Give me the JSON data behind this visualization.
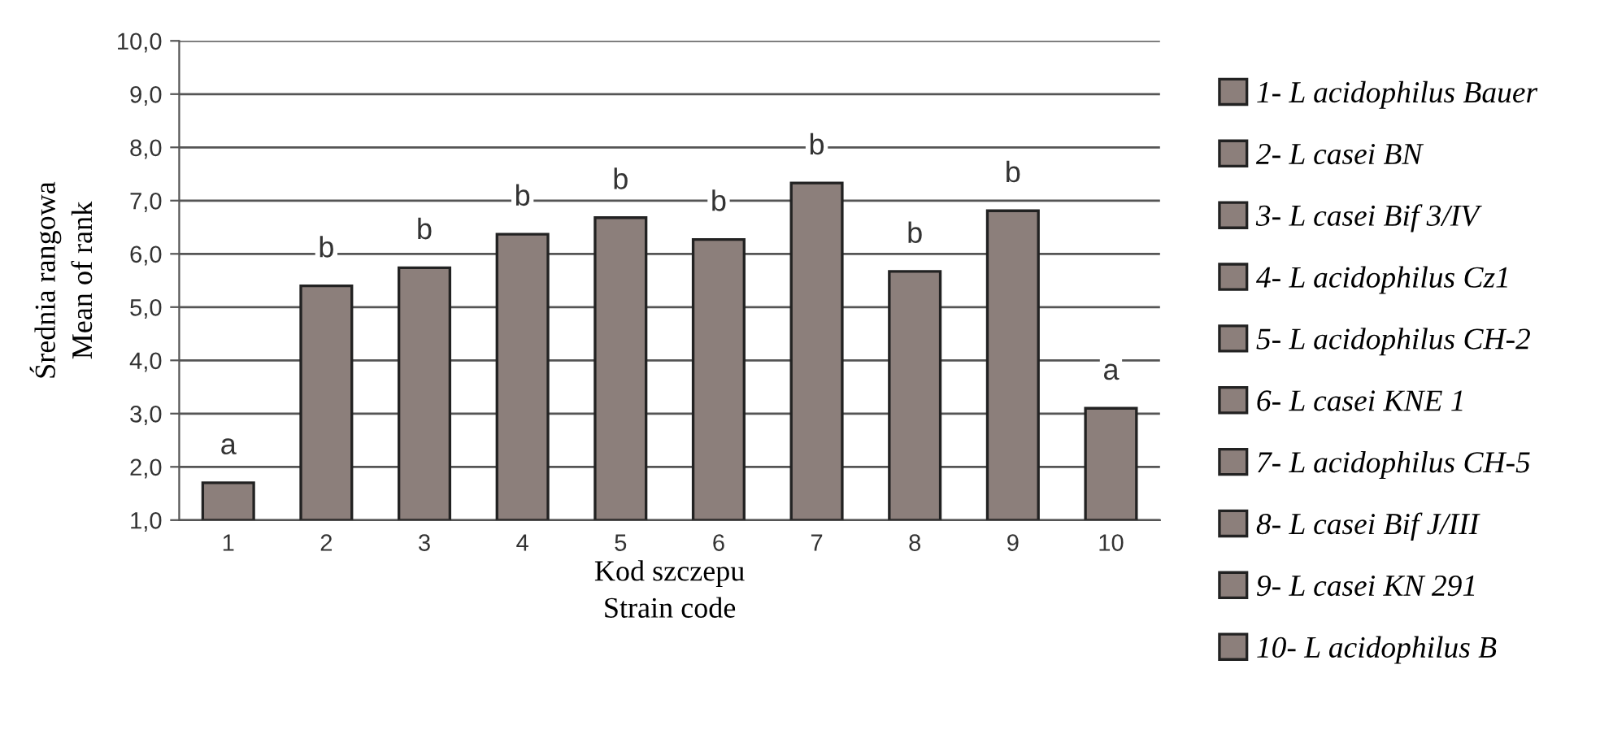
{
  "chart_data": {
    "type": "bar",
    "xlabel": "Kod szczepu\nStrain code",
    "ylabel": "Średnia rangowa\nMean of rank",
    "categories": [
      "1",
      "2",
      "3",
      "4",
      "5",
      "6",
      "7",
      "8",
      "9",
      "10"
    ],
    "series": [
      {
        "name": "1- L acidophilus Bauer",
        "color": "#8c7f7b",
        "values": [
          1.7,
          null,
          null,
          null,
          null,
          null,
          null,
          null,
          null,
          null
        ]
      },
      {
        "name": "2- L casei BN",
        "color": "#8c7f7b",
        "values": [
          null,
          5.4,
          null,
          null,
          null,
          null,
          null,
          null,
          null,
          null
        ]
      },
      {
        "name": "3- L casei Bif 3/IV",
        "color": "#8c7f7b",
        "values": [
          null,
          null,
          5.74,
          null,
          null,
          null,
          null,
          null,
          null,
          null
        ]
      },
      {
        "name": "4- L acidophilus Cz1",
        "color": "#8c7f7b",
        "values": [
          null,
          null,
          null,
          6.37,
          null,
          null,
          null,
          null,
          null,
          null
        ]
      },
      {
        "name": "5- L acidophilus CH-2",
        "color": "#8c7f7b",
        "values": [
          null,
          null,
          null,
          null,
          6.68,
          null,
          null,
          null,
          null,
          null
        ]
      },
      {
        "name": "6- L casei KNE 1",
        "color": "#8c7f7b",
        "values": [
          null,
          null,
          null,
          null,
          null,
          6.27,
          null,
          null,
          null,
          null
        ]
      },
      {
        "name": "7- L acidophilus CH-5",
        "color": "#8c7f7b",
        "values": [
          null,
          null,
          null,
          null,
          null,
          null,
          7.33,
          null,
          null,
          null
        ]
      },
      {
        "name": "8- L casei Bif J/III",
        "color": "#8c7f7b",
        "values": [
          null,
          null,
          null,
          null,
          null,
          null,
          null,
          5.67,
          null,
          null
        ]
      },
      {
        "name": "9- L casei KN 291",
        "color": "#8c7f7b",
        "values": [
          null,
          null,
          null,
          null,
          null,
          null,
          null,
          null,
          6.81,
          null
        ]
      },
      {
        "name": "10- L acidophilus B",
        "color": "#8c7f7b",
        "values": [
          null,
          null,
          null,
          null,
          null,
          null,
          null,
          null,
          null,
          3.1
        ]
      }
    ],
    "annotations": [
      {
        "text": "a",
        "x": "1",
        "y": 1.7
      },
      {
        "text": "b",
        "x": "2",
        "y": 5.4
      },
      {
        "text": "b",
        "x": "3",
        "y": 5.74
      },
      {
        "text": "b",
        "x": "4",
        "y": 6.37
      },
      {
        "text": "b",
        "x": "5",
        "y": 6.68
      },
      {
        "text": "b",
        "x": "6",
        "y": 6.27
      },
      {
        "text": "b",
        "x": "7",
        "y": 7.33
      },
      {
        "text": "b",
        "x": "8",
        "y": 5.67
      },
      {
        "text": "b",
        "x": "9",
        "y": 6.81
      },
      {
        "text": "a",
        "x": "10",
        "y": 3.1
      }
    ],
    "ylim": [
      1.0,
      10.0
    ],
    "yticks": [
      {
        "value": 1.0,
        "label": "1,0"
      },
      {
        "value": 2.0,
        "label": "2,0"
      },
      {
        "value": 3.0,
        "label": "3,0"
      },
      {
        "value": 4.0,
        "label": "4,0"
      },
      {
        "value": 5.0,
        "label": "5,0"
      },
      {
        "value": 6.0,
        "label": "6,0"
      },
      {
        "value": 7.0,
        "label": "7,0"
      },
      {
        "value": 8.0,
        "label": "8,0"
      },
      {
        "value": 9.0,
        "label": "9,0"
      },
      {
        "value": 10.0,
        "label": "10,0"
      }
    ],
    "grid": "y",
    "legend": "right"
  }
}
